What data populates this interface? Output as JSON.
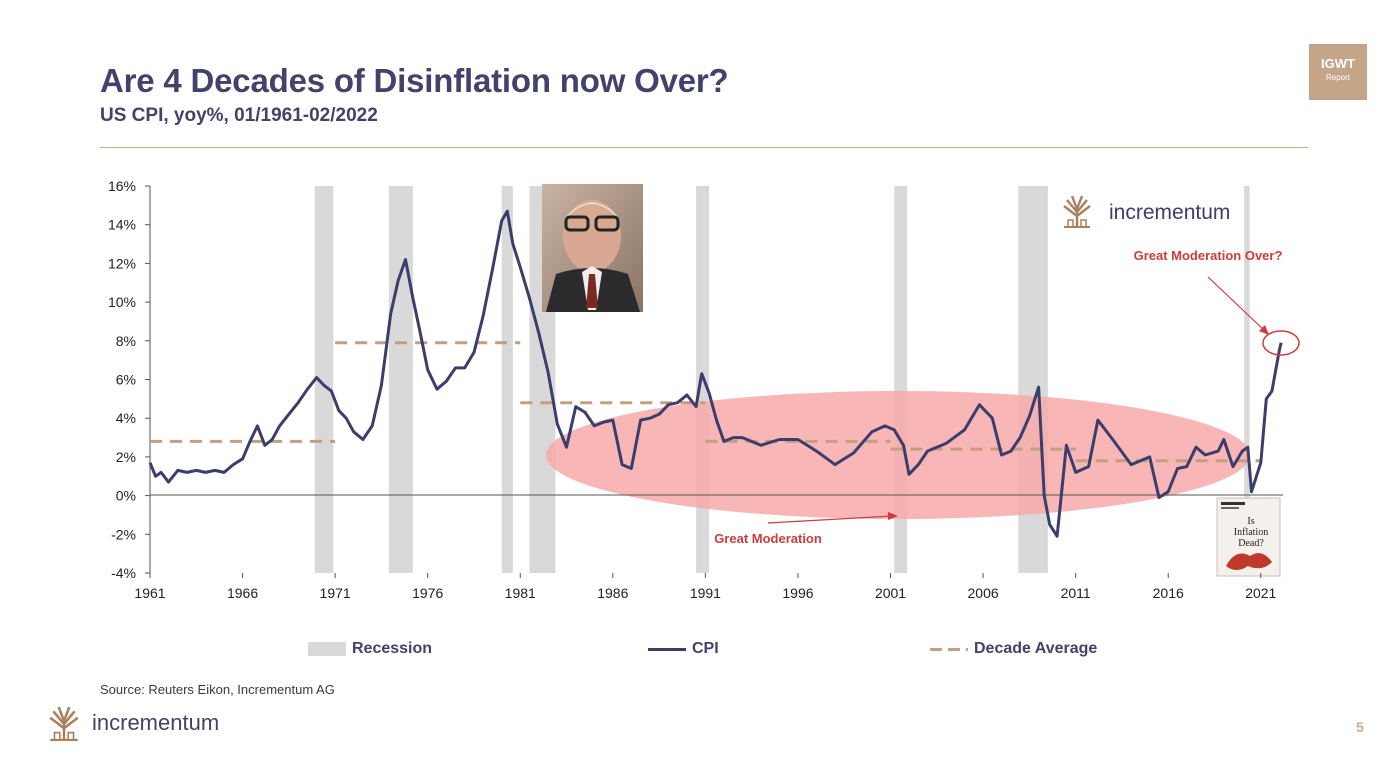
{
  "header": {
    "title": "Are 4 Decades of Disinflation now Over?",
    "subtitle": "US CPI, yoy%, 01/1961-02/2022",
    "badge_line1": "IGWT",
    "badge_line2": "Report"
  },
  "brand": {
    "name": "incrementum",
    "color": "#a9805e"
  },
  "colors": {
    "cpi": "#3b3d6b",
    "decade_avg": "#c49e80",
    "recession": "#d9d9d9",
    "great_moderation_fill": "#f7a9a9",
    "annotation": "#d23b3b"
  },
  "legend": {
    "recession": "Recession",
    "cpi": "CPI",
    "decade_average": "Decade Average"
  },
  "annotations": {
    "great_moderation_over": "Great Moderation Over?",
    "great_moderation": "Great Moderation"
  },
  "cover": {
    "lines": [
      "Is",
      "Inflation",
      "Dead?"
    ]
  },
  "footer": {
    "source": "Source: Reuters Eikon, Incrementum AG",
    "page_number": "5"
  },
  "chart_data": {
    "type": "line",
    "x_range": [
      1961.0,
      2022.2
    ],
    "ylim": [
      -4,
      16
    ],
    "y_ticks": [
      "-4%",
      "-2%",
      "0%",
      "2%",
      "4%",
      "6%",
      "8%",
      "10%",
      "12%",
      "14%",
      "16%"
    ],
    "x_ticks": [
      "1961",
      "1966",
      "1971",
      "1976",
      "1981",
      "1986",
      "1991",
      "1996",
      "2001",
      "2006",
      "2011",
      "2016",
      "2021"
    ],
    "grid": false,
    "legend_position": "bottom",
    "series": [
      {
        "name": "CPI",
        "x": [
          1961.0,
          1961.3,
          1961.6,
          1962.0,
          1962.5,
          1963.0,
          1963.5,
          1964.0,
          1964.5,
          1965.0,
          1965.5,
          1966.0,
          1966.4,
          1966.8,
          1967.2,
          1967.6,
          1968.0,
          1968.5,
          1969.0,
          1969.5,
          1970.0,
          1970.4,
          1970.8,
          1971.2,
          1971.6,
          1972.0,
          1972.5,
          1973.0,
          1973.5,
          1974.0,
          1974.4,
          1974.8,
          1975.2,
          1975.6,
          1976.0,
          1976.5,
          1977.0,
          1977.5,
          1978.0,
          1978.5,
          1979.0,
          1979.5,
          1980.0,
          1980.3,
          1980.6,
          1981.0,
          1981.5,
          1982.0,
          1982.5,
          1983.0,
          1983.5,
          1984.0,
          1984.5,
          1985.0,
          1985.5,
          1986.0,
          1986.5,
          1987.0,
          1987.5,
          1988.0,
          1988.5,
          1989.0,
          1989.5,
          1990.0,
          1990.5,
          1990.8,
          1991.2,
          1991.6,
          1992.0,
          1992.5,
          1993.0,
          1994.0,
          1995.0,
          1996.0,
          1997.0,
          1998.0,
          1999.0,
          2000.0,
          2000.7,
          2001.2,
          2001.7,
          2002.0,
          2002.5,
          2003.0,
          2004.0,
          2005.0,
          2005.8,
          2006.5,
          2007.0,
          2007.5,
          2008.0,
          2008.5,
          2009.0,
          2009.3,
          2009.6,
          2010.0,
          2010.5,
          2011.0,
          2011.7,
          2012.2,
          2013.0,
          2014.0,
          2014.5,
          2015.0,
          2015.5,
          2016.0,
          2016.5,
          2017.0,
          2017.5,
          2018.0,
          2018.7,
          2019.0,
          2019.5,
          2020.0,
          2020.3,
          2020.5,
          2021.0,
          2021.3,
          2021.6,
          2022.0,
          2022.1
        ],
        "values": [
          1.7,
          1.0,
          1.2,
          0.7,
          1.3,
          1.2,
          1.3,
          1.2,
          1.3,
          1.2,
          1.6,
          1.9,
          2.8,
          3.6,
          2.6,
          2.9,
          3.6,
          4.2,
          4.8,
          5.5,
          6.1,
          5.7,
          5.4,
          4.4,
          4.0,
          3.3,
          2.9,
          3.6,
          5.7,
          9.4,
          11.1,
          12.2,
          10.2,
          8.4,
          6.5,
          5.5,
          5.9,
          6.6,
          6.6,
          7.4,
          9.3,
          11.7,
          14.2,
          14.7,
          13.0,
          11.8,
          10.2,
          8.4,
          6.4,
          3.7,
          2.5,
          4.6,
          4.3,
          3.6,
          3.8,
          3.9,
          1.6,
          1.4,
          3.9,
          4.0,
          4.2,
          4.7,
          4.8,
          5.2,
          4.6,
          6.3,
          5.3,
          3.9,
          2.8,
          3.0,
          3.0,
          2.6,
          2.9,
          2.9,
          2.3,
          1.6,
          2.2,
          3.3,
          3.6,
          3.4,
          2.6,
          1.1,
          1.6,
          2.3,
          2.7,
          3.4,
          4.7,
          4.0,
          2.1,
          2.3,
          3.0,
          4.1,
          5.6,
          0.0,
          -1.5,
          -2.1,
          2.6,
          1.2,
          1.5,
          3.9,
          2.9,
          1.6,
          1.8,
          2.0,
          -0.1,
          0.2,
          1.4,
          1.5,
          2.5,
          2.1,
          2.3,
          2.9,
          1.5,
          2.3,
          2.5,
          0.2,
          1.7,
          5.0,
          5.4,
          7.5,
          7.9
        ],
        "color": "#3b3d6b"
      },
      {
        "name": "Decade Average",
        "segments": [
          {
            "x": [
              1961.0,
              1971.0
            ],
            "value": 2.8
          },
          {
            "x": [
              1971.0,
              1981.0
            ],
            "value": 7.9
          },
          {
            "x": [
              1981.0,
              1991.0
            ],
            "value": 4.8
          },
          {
            "x": [
              1991.0,
              2001.0
            ],
            "value": 2.8
          },
          {
            "x": [
              2001.0,
              2011.0
            ],
            "value": 2.4
          },
          {
            "x": [
              2011.0,
              2021.0
            ],
            "value": 1.8
          }
        ],
        "color": "#c49e80"
      }
    ],
    "recessions": [
      [
        1969.9,
        1970.9
      ],
      [
        1973.9,
        1975.2
      ],
      [
        1980.0,
        1980.6
      ],
      [
        1981.5,
        1982.9
      ],
      [
        1990.5,
        1991.2
      ],
      [
        2001.2,
        2001.9
      ],
      [
        2007.9,
        2009.5
      ],
      [
        2020.1,
        2020.4
      ]
    ]
  }
}
